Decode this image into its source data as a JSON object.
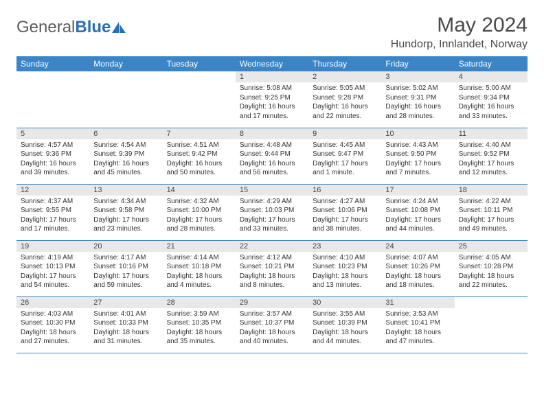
{
  "logo": {
    "word1": "General",
    "word2": "Blue",
    "logo_color": "#2a6fb5"
  },
  "header": {
    "month_title": "May 2024",
    "location": "Hundorp, Innlandet, Norway"
  },
  "columns": [
    "Sunday",
    "Monday",
    "Tuesday",
    "Wednesday",
    "Thursday",
    "Friday",
    "Saturday"
  ],
  "styling": {
    "header_bar_color": "#3b85c6",
    "header_text_color": "#ffffff",
    "daynum_bg": "#e8e8e8",
    "cell_border_color": "#3b85c6",
    "body_text_color": "#333333",
    "title_color": "#4a4a4a",
    "font_family": "Arial",
    "month_title_fontsize": 30,
    "location_fontsize": 16,
    "th_fontsize": 12,
    "daynum_fontsize": 11,
    "cell_fontsize": 10
  },
  "weeks": [
    [
      null,
      null,
      null,
      {
        "n": "1",
        "sr": "Sunrise: 5:08 AM",
        "ss": "Sunset: 9:25 PM",
        "dl": "Daylight: 16 hours and 17 minutes."
      },
      {
        "n": "2",
        "sr": "Sunrise: 5:05 AM",
        "ss": "Sunset: 9:28 PM",
        "dl": "Daylight: 16 hours and 22 minutes."
      },
      {
        "n": "3",
        "sr": "Sunrise: 5:02 AM",
        "ss": "Sunset: 9:31 PM",
        "dl": "Daylight: 16 hours and 28 minutes."
      },
      {
        "n": "4",
        "sr": "Sunrise: 5:00 AM",
        "ss": "Sunset: 9:34 PM",
        "dl": "Daylight: 16 hours and 33 minutes."
      }
    ],
    [
      {
        "n": "5",
        "sr": "Sunrise: 4:57 AM",
        "ss": "Sunset: 9:36 PM",
        "dl": "Daylight: 16 hours and 39 minutes."
      },
      {
        "n": "6",
        "sr": "Sunrise: 4:54 AM",
        "ss": "Sunset: 9:39 PM",
        "dl": "Daylight: 16 hours and 45 minutes."
      },
      {
        "n": "7",
        "sr": "Sunrise: 4:51 AM",
        "ss": "Sunset: 9:42 PM",
        "dl": "Daylight: 16 hours and 50 minutes."
      },
      {
        "n": "8",
        "sr": "Sunrise: 4:48 AM",
        "ss": "Sunset: 9:44 PM",
        "dl": "Daylight: 16 hours and 56 minutes."
      },
      {
        "n": "9",
        "sr": "Sunrise: 4:45 AM",
        "ss": "Sunset: 9:47 PM",
        "dl": "Daylight: 17 hours and 1 minute."
      },
      {
        "n": "10",
        "sr": "Sunrise: 4:43 AM",
        "ss": "Sunset: 9:50 PM",
        "dl": "Daylight: 17 hours and 7 minutes."
      },
      {
        "n": "11",
        "sr": "Sunrise: 4:40 AM",
        "ss": "Sunset: 9:52 PM",
        "dl": "Daylight: 17 hours and 12 minutes."
      }
    ],
    [
      {
        "n": "12",
        "sr": "Sunrise: 4:37 AM",
        "ss": "Sunset: 9:55 PM",
        "dl": "Daylight: 17 hours and 17 minutes."
      },
      {
        "n": "13",
        "sr": "Sunrise: 4:34 AM",
        "ss": "Sunset: 9:58 PM",
        "dl": "Daylight: 17 hours and 23 minutes."
      },
      {
        "n": "14",
        "sr": "Sunrise: 4:32 AM",
        "ss": "Sunset: 10:00 PM",
        "dl": "Daylight: 17 hours and 28 minutes."
      },
      {
        "n": "15",
        "sr": "Sunrise: 4:29 AM",
        "ss": "Sunset: 10:03 PM",
        "dl": "Daylight: 17 hours and 33 minutes."
      },
      {
        "n": "16",
        "sr": "Sunrise: 4:27 AM",
        "ss": "Sunset: 10:06 PM",
        "dl": "Daylight: 17 hours and 38 minutes."
      },
      {
        "n": "17",
        "sr": "Sunrise: 4:24 AM",
        "ss": "Sunset: 10:08 PM",
        "dl": "Daylight: 17 hours and 44 minutes."
      },
      {
        "n": "18",
        "sr": "Sunrise: 4:22 AM",
        "ss": "Sunset: 10:11 PM",
        "dl": "Daylight: 17 hours and 49 minutes."
      }
    ],
    [
      {
        "n": "19",
        "sr": "Sunrise: 4:19 AM",
        "ss": "Sunset: 10:13 PM",
        "dl": "Daylight: 17 hours and 54 minutes."
      },
      {
        "n": "20",
        "sr": "Sunrise: 4:17 AM",
        "ss": "Sunset: 10:16 PM",
        "dl": "Daylight: 17 hours and 59 minutes."
      },
      {
        "n": "21",
        "sr": "Sunrise: 4:14 AM",
        "ss": "Sunset: 10:18 PM",
        "dl": "Daylight: 18 hours and 4 minutes."
      },
      {
        "n": "22",
        "sr": "Sunrise: 4:12 AM",
        "ss": "Sunset: 10:21 PM",
        "dl": "Daylight: 18 hours and 8 minutes."
      },
      {
        "n": "23",
        "sr": "Sunrise: 4:10 AM",
        "ss": "Sunset: 10:23 PM",
        "dl": "Daylight: 18 hours and 13 minutes."
      },
      {
        "n": "24",
        "sr": "Sunrise: 4:07 AM",
        "ss": "Sunset: 10:26 PM",
        "dl": "Daylight: 18 hours and 18 minutes."
      },
      {
        "n": "25",
        "sr": "Sunrise: 4:05 AM",
        "ss": "Sunset: 10:28 PM",
        "dl": "Daylight: 18 hours and 22 minutes."
      }
    ],
    [
      {
        "n": "26",
        "sr": "Sunrise: 4:03 AM",
        "ss": "Sunset: 10:30 PM",
        "dl": "Daylight: 18 hours and 27 minutes."
      },
      {
        "n": "27",
        "sr": "Sunrise: 4:01 AM",
        "ss": "Sunset: 10:33 PM",
        "dl": "Daylight: 18 hours and 31 minutes."
      },
      {
        "n": "28",
        "sr": "Sunrise: 3:59 AM",
        "ss": "Sunset: 10:35 PM",
        "dl": "Daylight: 18 hours and 35 minutes."
      },
      {
        "n": "29",
        "sr": "Sunrise: 3:57 AM",
        "ss": "Sunset: 10:37 PM",
        "dl": "Daylight: 18 hours and 40 minutes."
      },
      {
        "n": "30",
        "sr": "Sunrise: 3:55 AM",
        "ss": "Sunset: 10:39 PM",
        "dl": "Daylight: 18 hours and 44 minutes."
      },
      {
        "n": "31",
        "sr": "Sunrise: 3:53 AM",
        "ss": "Sunset: 10:41 PM",
        "dl": "Daylight: 18 hours and 47 minutes."
      },
      null
    ]
  ]
}
